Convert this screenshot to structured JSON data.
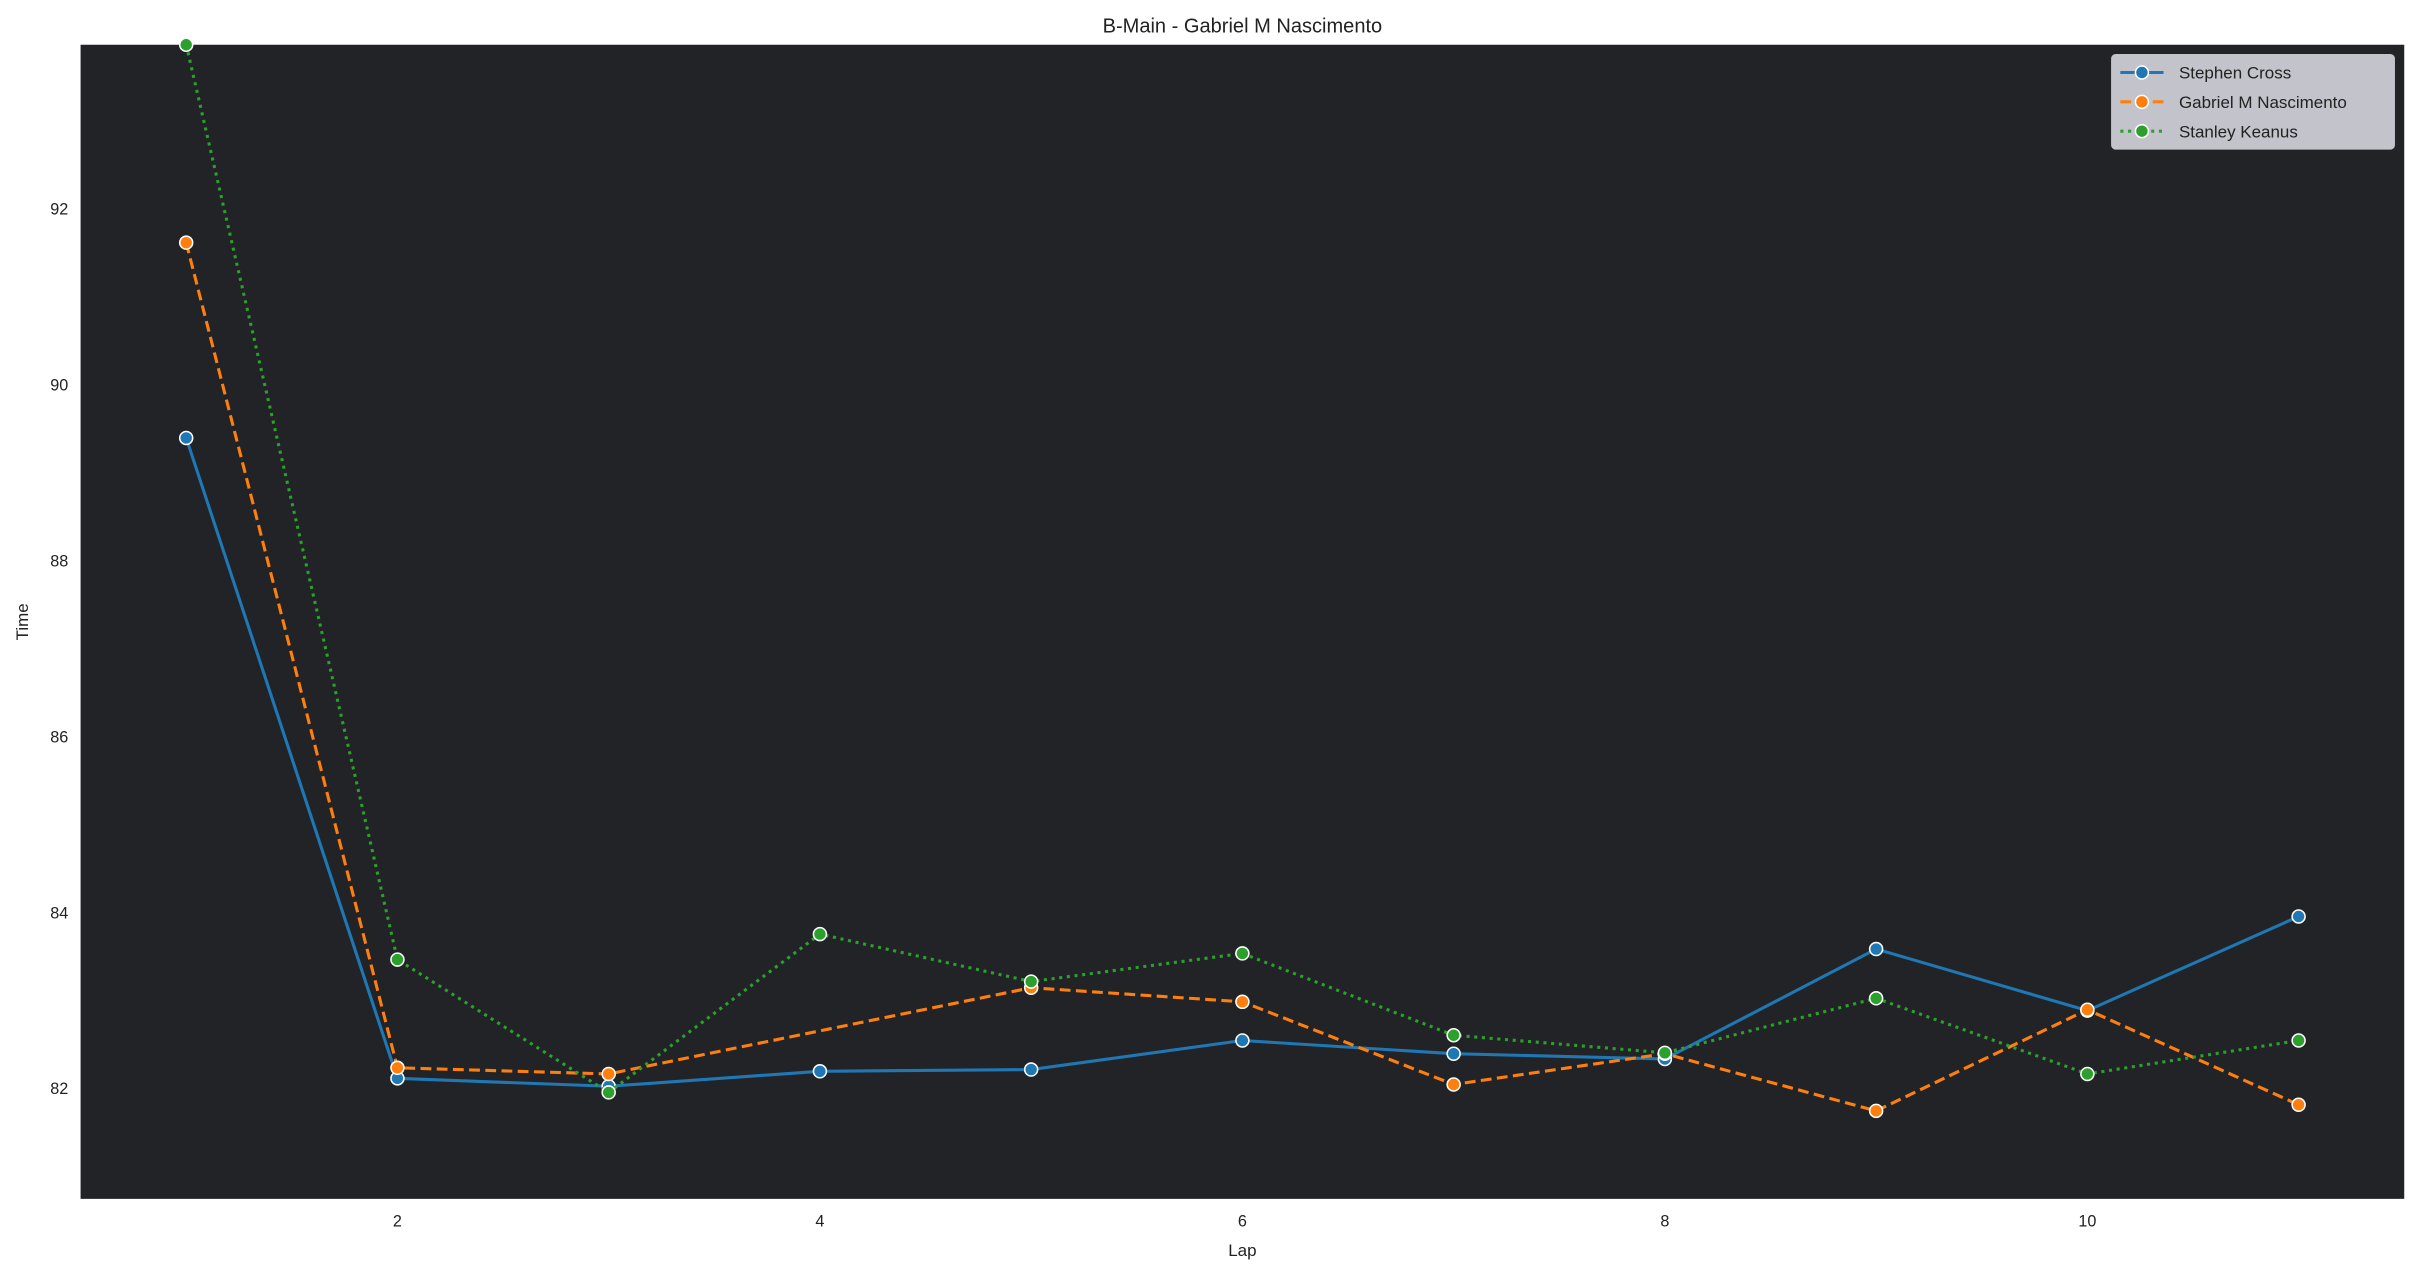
{
  "chart_data": {
    "type": "line",
    "title": "B-Main - Gabriel M Nascimento",
    "xlabel": "Lap",
    "ylabel": "Time",
    "xlim": [
      0.5,
      11.5
    ],
    "ylim": [
      80.74,
      93.86
    ],
    "xticks": [
      2,
      4,
      6,
      8,
      10
    ],
    "yticks": [
      82,
      84,
      86,
      88,
      90,
      92
    ],
    "grid": false,
    "legend_position": "top-right",
    "plot_background": "#212327",
    "x": [
      1,
      2,
      3,
      4,
      5,
      6,
      7,
      8,
      9,
      10,
      11
    ],
    "series": [
      {
        "name": "Stephen Cross",
        "color": "#1f77b4",
        "linestyle": "solid",
        "values": [
          89.39,
          82.11,
          82.02,
          82.19,
          82.21,
          82.54,
          82.39,
          82.33,
          83.58,
          82.88,
          83.95
        ]
      },
      {
        "name": "Gabriel M Nascimento",
        "color": "#ff7f0e",
        "linestyle": "dashed",
        "values": [
          91.61,
          82.23,
          82.16,
          null,
          83.14,
          82.98,
          82.04,
          82.39,
          81.74,
          82.89,
          81.81
        ]
      },
      {
        "name": "Stanley Keanus",
        "color": "#2ca02c",
        "linestyle": "dotted",
        "values": [
          93.86,
          83.46,
          81.95,
          83.75,
          83.21,
          83.53,
          82.6,
          82.4,
          83.02,
          82.16,
          82.54
        ]
      }
    ]
  }
}
